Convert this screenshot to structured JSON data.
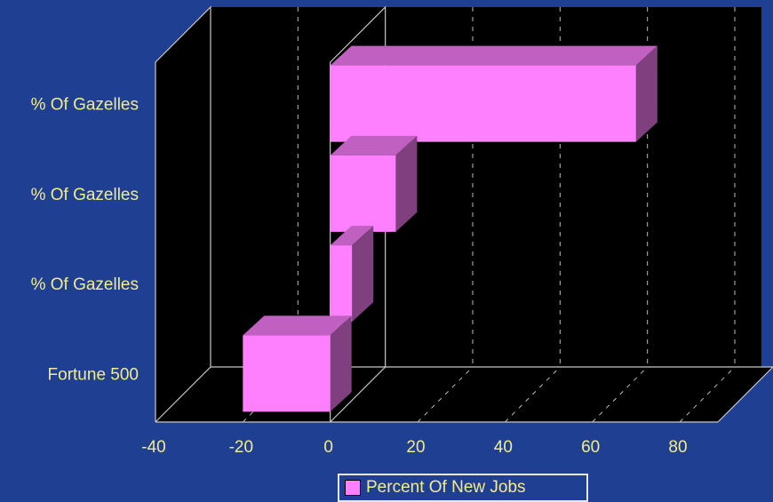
{
  "chart_data": {
    "type": "bar",
    "orientation": "horizontal",
    "style": "3d",
    "categories": [
      "% Of Gazelles",
      "% Of Gazelles",
      "% Of Gazelles",
      "Fortune 500"
    ],
    "series": [
      {
        "name": "Percent Of New Jobs",
        "values": [
          70,
          15,
          5,
          -20
        ]
      }
    ],
    "xlim": [
      -40,
      80
    ],
    "xticks": [
      -40,
      -20,
      0,
      20,
      40,
      60,
      80
    ],
    "grid": true,
    "legend_position": "bottom"
  },
  "colors": {
    "background": "#1f3f93",
    "plot_area": "#000000",
    "bar_front": "#ff80ff",
    "bar_top": "#c060c0",
    "bar_side": "#80407f",
    "text": "#f3ec8c"
  }
}
